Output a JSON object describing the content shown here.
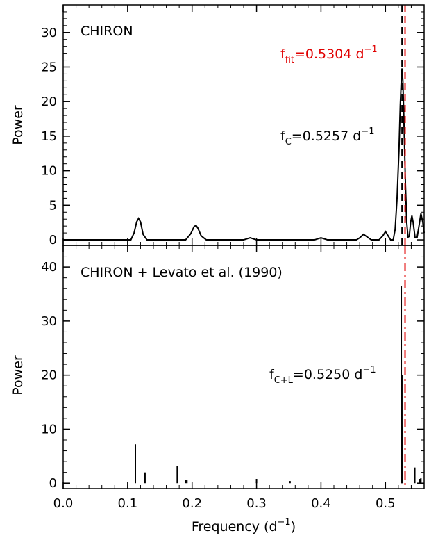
{
  "chart_data": [
    {
      "type": "line",
      "panel": "top",
      "title": "CHIRON",
      "xlabel": "",
      "ylabel": "Power",
      "xlim": [
        0.0,
        0.56
      ],
      "ylim": [
        -0.8,
        34
      ],
      "yticks": [
        0,
        5,
        10,
        15,
        20,
        25,
        30
      ],
      "grid": false,
      "series": [
        {
          "x": [
            0.0,
            0.08,
            0.105,
            0.11,
            0.114,
            0.117,
            0.12,
            0.124,
            0.13,
            0.16,
            0.19,
            0.198,
            0.203,
            0.206,
            0.209,
            0.214,
            0.222,
            0.28,
            0.29,
            0.3,
            0.39,
            0.4,
            0.41,
            0.455,
            0.46,
            0.466,
            0.472,
            0.478,
            0.49,
            0.496,
            0.5,
            0.504,
            0.508,
            0.512,
            0.515,
            0.518,
            0.521,
            0.523,
            0.525,
            0.5257,
            0.527,
            0.529,
            0.531,
            0.533,
            0.535,
            0.537,
            0.539,
            0.541,
            0.543,
            0.546,
            0.549,
            0.552,
            0.555,
            0.558,
            0.56
          ],
          "y": [
            0,
            0,
            0,
            1.0,
            2.6,
            3.1,
            2.6,
            0.8,
            0,
            0,
            0,
            0.9,
            1.9,
            2.1,
            1.7,
            0.6,
            0,
            0,
            0.3,
            0,
            0,
            0.3,
            0,
            0,
            0.3,
            0.8,
            0.4,
            0,
            0,
            0.6,
            1.2,
            0.6,
            0,
            0,
            1.5,
            6.0,
            13.0,
            19.5,
            24.0,
            24.8,
            23.0,
            16.0,
            8.0,
            2.5,
            0.4,
            0.5,
            2.5,
            3.5,
            2.5,
            0.3,
            0.3,
            2.0,
            3.8,
            2.5,
            1.0
          ]
        }
      ],
      "vlines": [
        {
          "x": 0.5257,
          "style": "dashed",
          "color": "#000000"
        },
        {
          "x": 0.5304,
          "style": "dashed",
          "color": "#e00000"
        }
      ],
      "annotations": {
        "ffit_main": "f",
        "ffit_sub": "fit",
        "ffit_value": "=0.5304  d",
        "ffit_exp": "−1",
        "fc_main": "f",
        "fc_sub": "C",
        "fc_value": "=0.5257  d",
        "fc_exp": "−1"
      }
    },
    {
      "type": "bar",
      "panel": "bottom",
      "title": "CHIRON + Levato et al. (1990)",
      "xlabel_main": "Frequency  (d",
      "xlabel_exp": "−1",
      "xlabel_close": ")",
      "ylabel": "Power",
      "xlim": [
        0.0,
        0.56
      ],
      "ylim": [
        -1.0,
        44
      ],
      "xticks": [
        "0.0",
        "0.1",
        "0.2",
        "0.3",
        "0.4",
        "0.5"
      ],
      "xtick_values": [
        0.0,
        0.1,
        0.2,
        0.3,
        0.4,
        0.5
      ],
      "yticks": [
        0,
        10,
        20,
        30,
        40
      ],
      "grid": false,
      "series": [
        {
          "x": [
            0.112,
            0.127,
            0.177,
            0.19,
            0.192,
            0.3,
            0.352,
            0.5245,
            0.5255,
            0.5265,
            0.5455,
            0.553,
            0.555
          ],
          "values": [
            7.2,
            2.0,
            3.2,
            0.6,
            0.6,
            0.8,
            0.4,
            36.5,
            20.0,
            10.5,
            2.9,
            0.8,
            1.0
          ]
        }
      ],
      "vlines": [
        {
          "x": 0.5304,
          "style": "dashdot",
          "color": "#e00000"
        }
      ],
      "annotations": {
        "fcl_main": "f",
        "fcl_sub": "C+L",
        "fcl_value": "=0.5250  d",
        "fcl_exp": "−1"
      }
    }
  ]
}
